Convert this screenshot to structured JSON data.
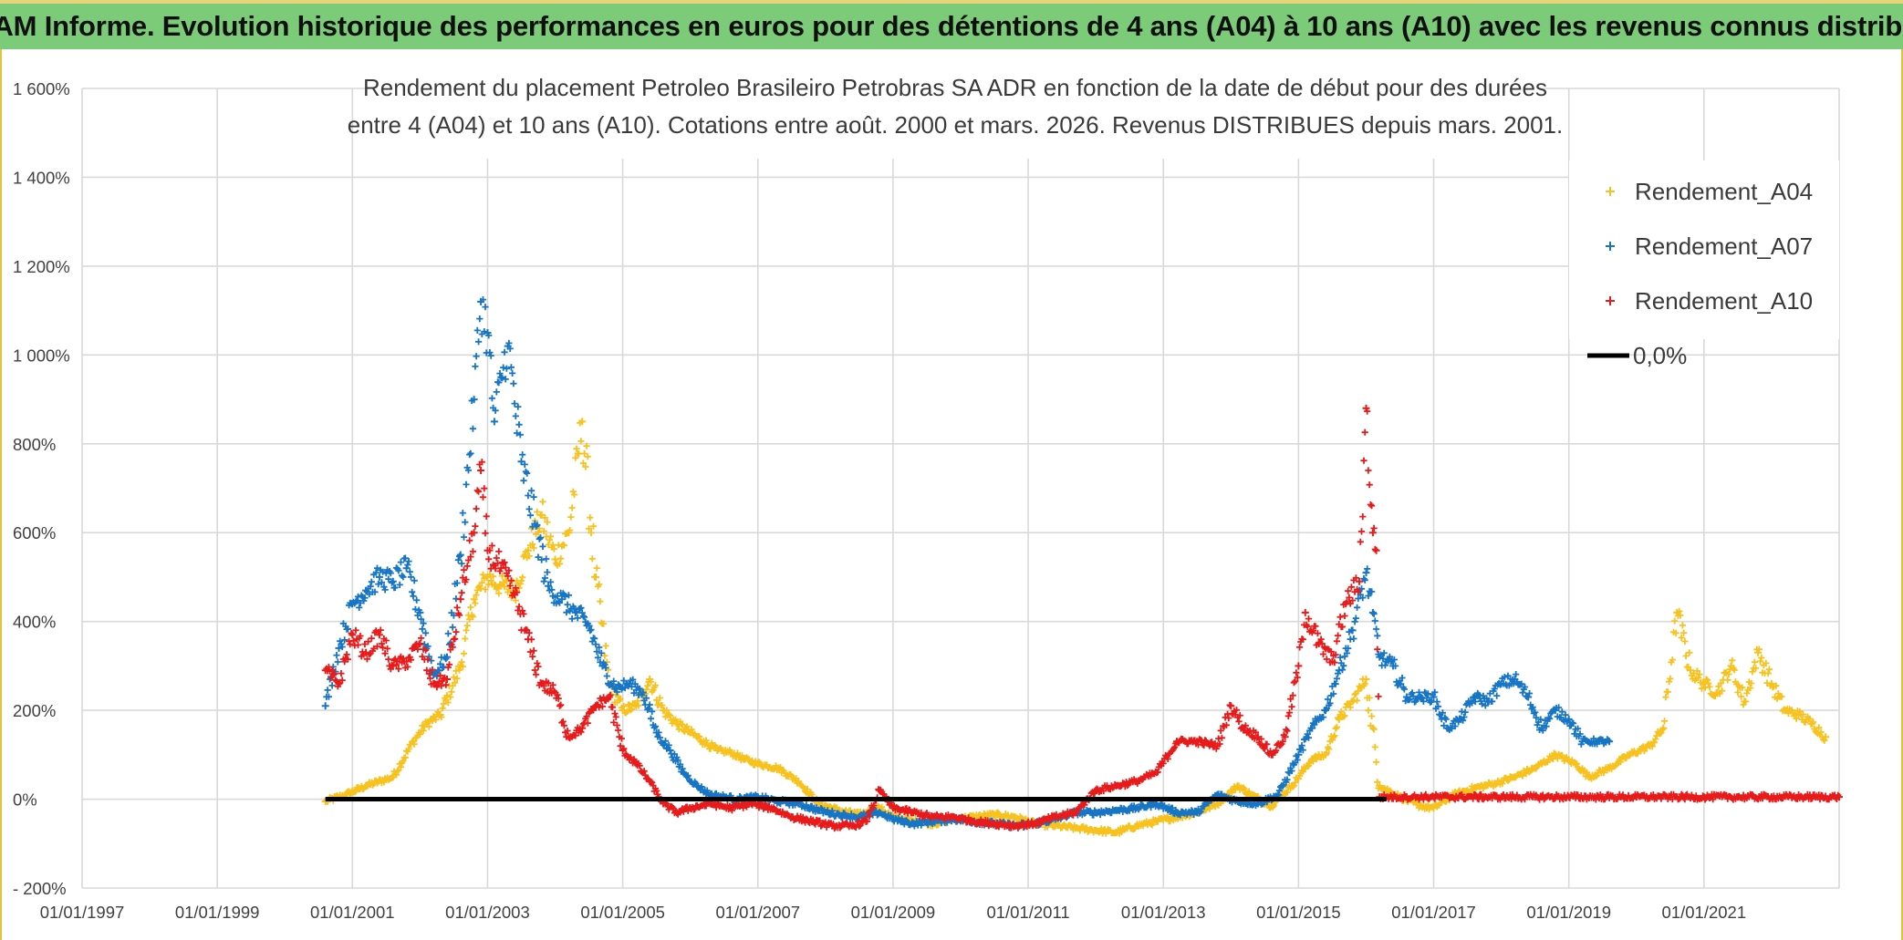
{
  "header": {
    "title": "ADAM Informe. Evolution historique des performances en euros pour des détentions de 4 ans (A04) à 10 ans (A10) avec les revenus connus distribués"
  },
  "colors": {
    "banner": "#7ccb79",
    "a04": "#f7c21e",
    "a07": "#1675c4",
    "a10": "#e81a1a",
    "zero": "#000000"
  },
  "chart_data": {
    "type": "scatter",
    "title_lines": [
      "Rendement du placement Petroleo Brasileiro Petrobras SA ADR en fonction de la date de début pour des durées",
      "entre 4 (A04) et 10 ans (A10). Cotations entre août. 2000 et mars. 2026. Revenus DISTRIBUES depuis mars. 2001."
    ],
    "y_tick_labels": [
      "1 600%",
      "1 400%",
      "1 200%",
      "1 000%",
      "800%",
      "600%",
      "400%",
      "200%",
      "0%",
      "- 200%"
    ],
    "x_tick_labels": [
      "01/01/1997",
      "01/01/1999",
      "01/01/2001",
      "01/01/2003",
      "01/01/2005",
      "01/01/2007",
      "01/01/2009",
      "01/01/2011",
      "01/01/2013",
      "01/01/2015",
      "01/01/2017",
      "01/01/2019",
      "01/01/2021"
    ],
    "x_unit": "year",
    "xlim": [
      1997.0,
      2023.0
    ],
    "ylim": [
      -200,
      1600
    ],
    "grid": true,
    "legend_position": "top-right",
    "series": [
      {
        "name": "Rendement_A04",
        "color": "#f7c21e",
        "marker": "+",
        "points": [
          [
            2000.6,
            -5
          ],
          [
            2000.9,
            10
          ],
          [
            2001.2,
            30
          ],
          [
            2001.6,
            50
          ],
          [
            2001.9,
            130
          ],
          [
            2002.1,
            170
          ],
          [
            2002.3,
            190
          ],
          [
            2002.6,
            300
          ],
          [
            2002.8,
            450
          ],
          [
            2003.0,
            500
          ],
          [
            2003.2,
            480
          ],
          [
            2003.4,
            470
          ],
          [
            2003.6,
            560
          ],
          [
            2003.8,
            640
          ],
          [
            2004.0,
            540
          ],
          [
            2004.2,
            600
          ],
          [
            2004.4,
            850
          ],
          [
            2004.6,
            500
          ],
          [
            2004.8,
            260
          ],
          [
            2005.0,
            200
          ],
          [
            2005.2,
            210
          ],
          [
            2005.4,
            270
          ],
          [
            2005.6,
            200
          ],
          [
            2005.8,
            170
          ],
          [
            2006.0,
            150
          ],
          [
            2006.2,
            130
          ],
          [
            2006.4,
            110
          ],
          [
            2006.6,
            105
          ],
          [
            2006.8,
            90
          ],
          [
            2007.0,
            80
          ],
          [
            2007.3,
            70
          ],
          [
            2007.6,
            40
          ],
          [
            2007.9,
            -10
          ],
          [
            2008.2,
            -25
          ],
          [
            2008.5,
            -35
          ],
          [
            2008.8,
            -20
          ],
          [
            2009.0,
            -40
          ],
          [
            2009.3,
            -50
          ],
          [
            2009.6,
            -55
          ],
          [
            2009.9,
            -45
          ],
          [
            2010.2,
            -40
          ],
          [
            2010.5,
            -35
          ],
          [
            2010.8,
            -40
          ],
          [
            2011.1,
            -55
          ],
          [
            2011.4,
            -60
          ],
          [
            2011.7,
            -65
          ],
          [
            2012.0,
            -70
          ],
          [
            2012.3,
            -75
          ],
          [
            2012.6,
            -60
          ],
          [
            2012.9,
            -50
          ],
          [
            2013.2,
            -40
          ],
          [
            2013.5,
            -30
          ],
          [
            2013.8,
            -10
          ],
          [
            2014.1,
            30
          ],
          [
            2014.3,
            10
          ],
          [
            2014.6,
            -15
          ],
          [
            2014.9,
            30
          ],
          [
            2015.2,
            90
          ],
          [
            2015.4,
            100
          ],
          [
            2015.6,
            180
          ],
          [
            2015.8,
            220
          ],
          [
            2016.0,
            270
          ],
          [
            2016.2,
            30
          ],
          [
            2016.5,
            5
          ],
          [
            2016.8,
            -15
          ],
          [
            2017.0,
            -20
          ],
          [
            2017.3,
            10
          ],
          [
            2017.6,
            25
          ],
          [
            2017.9,
            35
          ],
          [
            2018.2,
            50
          ],
          [
            2018.5,
            70
          ],
          [
            2018.8,
            100
          ],
          [
            2019.1,
            80
          ],
          [
            2019.3,
            50
          ],
          [
            2019.6,
            70
          ],
          [
            2019.9,
            100
          ],
          [
            2020.2,
            120
          ],
          [
            2020.4,
            160
          ],
          [
            2020.6,
            420
          ],
          [
            2020.8,
            290
          ],
          [
            2021.0,
            260
          ],
          [
            2021.2,
            240
          ],
          [
            2021.4,
            300
          ],
          [
            2021.6,
            220
          ],
          [
            2021.8,
            330
          ],
          [
            2022.0,
            260
          ],
          [
            2022.2,
            200
          ],
          [
            2022.4,
            190
          ],
          [
            2022.6,
            170
          ],
          [
            2022.8,
            140
          ]
        ]
      },
      {
        "name": "Rendement_A07",
        "color": "#1675c4",
        "marker": "+",
        "points": [
          [
            2000.6,
            210
          ],
          [
            2000.8,
            340
          ],
          [
            2001.0,
            440
          ],
          [
            2001.2,
            470
          ],
          [
            2001.4,
            500
          ],
          [
            2001.6,
            490
          ],
          [
            2001.8,
            520
          ],
          [
            2002.0,
            420
          ],
          [
            2002.2,
            280
          ],
          [
            2002.4,
            320
          ],
          [
            2002.6,
            550
          ],
          [
            2002.8,
            900
          ],
          [
            2002.9,
            1120
          ],
          [
            2003.0,
            1050
          ],
          [
            2003.1,
            850
          ],
          [
            2003.2,
            950
          ],
          [
            2003.3,
            1020
          ],
          [
            2003.5,
            760
          ],
          [
            2003.7,
            620
          ],
          [
            2003.9,
            480
          ],
          [
            2004.1,
            450
          ],
          [
            2004.3,
            420
          ],
          [
            2004.5,
            390
          ],
          [
            2004.7,
            300
          ],
          [
            2004.9,
            250
          ],
          [
            2005.1,
            260
          ],
          [
            2005.3,
            240
          ],
          [
            2005.5,
            150
          ],
          [
            2005.7,
            110
          ],
          [
            2005.9,
            60
          ],
          [
            2006.1,
            30
          ],
          [
            2006.3,
            10
          ],
          [
            2006.5,
            5
          ],
          [
            2006.7,
            0
          ],
          [
            2007.0,
            5
          ],
          [
            2007.3,
            -5
          ],
          [
            2007.6,
            -10
          ],
          [
            2007.9,
            -25
          ],
          [
            2008.2,
            -35
          ],
          [
            2008.5,
            -40
          ],
          [
            2008.8,
            -30
          ],
          [
            2009.0,
            -45
          ],
          [
            2009.3,
            -55
          ],
          [
            2009.6,
            -50
          ],
          [
            2009.9,
            -45
          ],
          [
            2010.2,
            -50
          ],
          [
            2010.5,
            -55
          ],
          [
            2010.8,
            -60
          ],
          [
            2011.1,
            -55
          ],
          [
            2011.4,
            -45
          ],
          [
            2011.7,
            -30
          ],
          [
            2012.0,
            -30
          ],
          [
            2012.3,
            -25
          ],
          [
            2012.6,
            -20
          ],
          [
            2012.9,
            -10
          ],
          [
            2013.2,
            -30
          ],
          [
            2013.5,
            -30
          ],
          [
            2013.8,
            10
          ],
          [
            2014.1,
            -5
          ],
          [
            2014.4,
            -10
          ],
          [
            2014.7,
            10
          ],
          [
            2015.0,
            100
          ],
          [
            2015.2,
            160
          ],
          [
            2015.4,
            200
          ],
          [
            2015.6,
            290
          ],
          [
            2015.8,
            380
          ],
          [
            2016.0,
            510
          ],
          [
            2016.1,
            420
          ],
          [
            2016.2,
            320
          ],
          [
            2016.4,
            300
          ],
          [
            2016.6,
            230
          ],
          [
            2016.8,
            230
          ],
          [
            2017.0,
            230
          ],
          [
            2017.2,
            160
          ],
          [
            2017.4,
            180
          ],
          [
            2017.6,
            230
          ],
          [
            2017.8,
            220
          ],
          [
            2018.0,
            260
          ],
          [
            2018.2,
            270
          ],
          [
            2018.4,
            230
          ],
          [
            2018.6,
            160
          ],
          [
            2018.8,
            200
          ],
          [
            2019.0,
            180
          ],
          [
            2019.2,
            130
          ],
          [
            2019.4,
            130
          ],
          [
            2019.6,
            130
          ]
        ]
      },
      {
        "name": "Rendement_A10",
        "color": "#e81a1a",
        "marker": "+",
        "points": [
          [
            2000.6,
            290
          ],
          [
            2000.8,
            260
          ],
          [
            2001.0,
            370
          ],
          [
            2001.2,
            330
          ],
          [
            2001.4,
            370
          ],
          [
            2001.6,
            300
          ],
          [
            2001.8,
            310
          ],
          [
            2002.0,
            350
          ],
          [
            2002.2,
            260
          ],
          [
            2002.4,
            270
          ],
          [
            2002.6,
            450
          ],
          [
            2002.8,
            600
          ],
          [
            2002.9,
            740
          ],
          [
            2003.0,
            560
          ],
          [
            2003.2,
            520
          ],
          [
            2003.4,
            460
          ],
          [
            2003.6,
            360
          ],
          [
            2003.8,
            260
          ],
          [
            2004.0,
            240
          ],
          [
            2004.2,
            140
          ],
          [
            2004.4,
            160
          ],
          [
            2004.6,
            210
          ],
          [
            2004.8,
            230
          ],
          [
            2005.0,
            110
          ],
          [
            2005.2,
            80
          ],
          [
            2005.4,
            40
          ],
          [
            2005.6,
            -10
          ],
          [
            2005.8,
            -30
          ],
          [
            2006.0,
            -20
          ],
          [
            2006.3,
            -10
          ],
          [
            2006.6,
            -20
          ],
          [
            2006.9,
            -10
          ],
          [
            2007.2,
            -20
          ],
          [
            2007.5,
            -40
          ],
          [
            2007.8,
            -50
          ],
          [
            2008.1,
            -60
          ],
          [
            2008.4,
            -60
          ],
          [
            2008.6,
            -50
          ],
          [
            2008.8,
            20
          ],
          [
            2009.0,
            -20
          ],
          [
            2009.3,
            -30
          ],
          [
            2009.6,
            -40
          ],
          [
            2009.9,
            -40
          ],
          [
            2010.2,
            -50
          ],
          [
            2010.5,
            -55
          ],
          [
            2010.8,
            -60
          ],
          [
            2011.1,
            -55
          ],
          [
            2011.4,
            -40
          ],
          [
            2011.7,
            -30
          ],
          [
            2012.0,
            20
          ],
          [
            2012.3,
            30
          ],
          [
            2012.6,
            40
          ],
          [
            2012.9,
            60
          ],
          [
            2013.2,
            130
          ],
          [
            2013.5,
            130
          ],
          [
            2013.8,
            120
          ],
          [
            2014.0,
            210
          ],
          [
            2014.2,
            160
          ],
          [
            2014.4,
            140
          ],
          [
            2014.6,
            100
          ],
          [
            2014.8,
            140
          ],
          [
            2015.0,
            300
          ],
          [
            2015.1,
            420
          ],
          [
            2015.3,
            350
          ],
          [
            2015.5,
            310
          ],
          [
            2015.7,
            440
          ],
          [
            2015.9,
            490
          ],
          [
            2016.0,
            880
          ],
          [
            2016.1,
            600
          ],
          [
            2016.15,
            560
          ],
          [
            2016.2,
            5
          ],
          [
            2016.6,
            5
          ],
          [
            2017.0,
            5
          ],
          [
            2017.5,
            5
          ],
          [
            2018.0,
            5
          ],
          [
            2018.5,
            5
          ],
          [
            2019.0,
            5
          ],
          [
            2019.5,
            5
          ],
          [
            2020.0,
            5
          ],
          [
            2020.5,
            5
          ],
          [
            2021.0,
            5
          ],
          [
            2021.5,
            5
          ],
          [
            2022.0,
            5
          ],
          [
            2022.5,
            5
          ],
          [
            2023.0,
            5
          ]
        ]
      },
      {
        "name": "0,0%",
        "color": "#000000",
        "marker": "line",
        "points": [
          [
            2000.6,
            0
          ],
          [
            2016.3,
            0
          ]
        ]
      }
    ]
  }
}
